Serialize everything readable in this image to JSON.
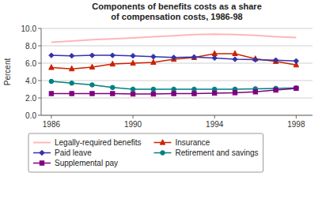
{
  "chart_data": {
    "type": "line",
    "title": "Components of benefits costs as a share\nof compensation costs, 1986-98",
    "y_label": "Percent",
    "x": [
      1986,
      1987,
      1988,
      1989,
      1990,
      1991,
      1992,
      1993,
      1994,
      1995,
      1996,
      1997,
      1998
    ],
    "series": [
      {
        "name": "Legally-required benefits",
        "color": "#FFB6B6",
        "marker": "none",
        "values": [
          8.4,
          8.55,
          8.7,
          8.8,
          8.9,
          9.05,
          9.15,
          9.3,
          9.35,
          9.3,
          9.2,
          9.05,
          8.95
        ]
      },
      {
        "name": "Insurance",
        "color": "#CC2200",
        "marker": "triangle",
        "values": [
          5.5,
          5.35,
          5.55,
          5.9,
          6.0,
          6.1,
          6.45,
          6.65,
          7.1,
          7.1,
          6.5,
          6.2,
          5.8
        ]
      },
      {
        "name": "Paid leave",
        "color": "#3333AA",
        "marker": "diamond",
        "values": [
          6.9,
          6.85,
          6.9,
          6.9,
          6.85,
          6.75,
          6.65,
          6.7,
          6.6,
          6.45,
          6.4,
          6.35,
          6.25
        ]
      },
      {
        "name": "Retirement and savings",
        "color": "#008080",
        "marker": "circle",
        "values": [
          3.9,
          3.7,
          3.5,
          3.2,
          3.0,
          3.0,
          3.0,
          3.0,
          3.0,
          3.0,
          3.05,
          3.1,
          3.15
        ]
      },
      {
        "name": "Supplemental pay",
        "color": "#800080",
        "marker": "square",
        "values": [
          2.5,
          2.5,
          2.5,
          2.5,
          2.45,
          2.45,
          2.5,
          2.5,
          2.55,
          2.6,
          2.7,
          2.9,
          3.1
        ]
      }
    ],
    "xlim": [
      1985.5,
      1998.8
    ],
    "xticks": [
      1986,
      1990,
      1994,
      1998
    ],
    "ylim": [
      0.0,
      10.0
    ],
    "yticks": [
      {
        "value": 0.0,
        "label": "0.0"
      },
      {
        "value": 2.0,
        "label": "2.0"
      },
      {
        "value": 4.0,
        "label": "4.0"
      },
      {
        "value": 6.0,
        "label": "6.0"
      },
      {
        "value": 8.0,
        "label": "8.0"
      },
      {
        "value": 10.0,
        "label": "10.0"
      }
    ],
    "grid": true,
    "legend": "bottom"
  }
}
